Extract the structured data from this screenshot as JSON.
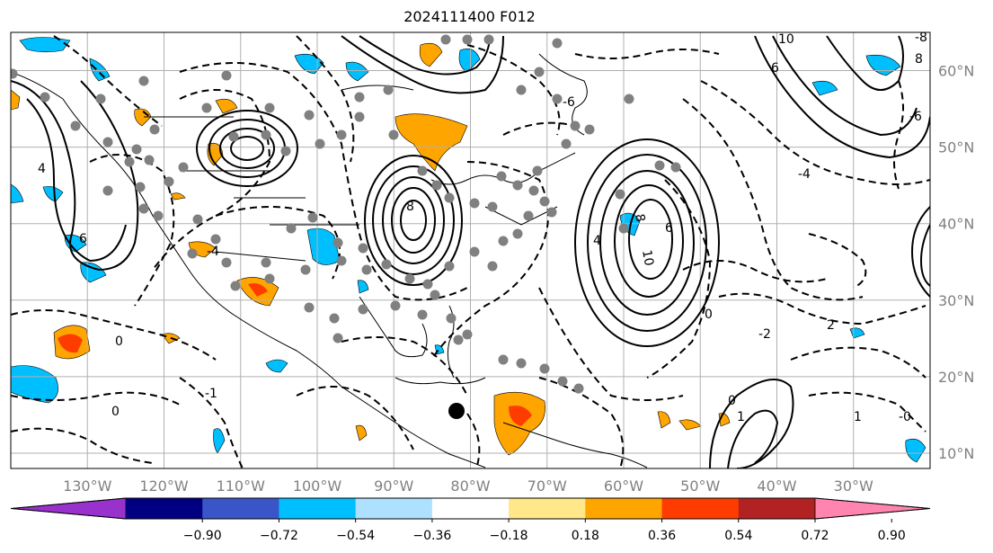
{
  "title": "2024111400 F012",
  "map": {
    "lon_range": [
      -140,
      -20
    ],
    "lat_range": [
      8,
      65
    ],
    "lat_labels": [
      "60°N",
      "50°N",
      "40°N",
      "30°N",
      "20°N",
      "10°N"
    ],
    "lat_values": [
      60,
      50,
      40,
      30,
      20,
      10
    ],
    "lon_labels": [
      "130°W",
      "120°W",
      "110°W",
      "100°W",
      "90°W",
      "80°W",
      "70°W",
      "60°W",
      "50°W",
      "40°W",
      "30°W"
    ],
    "lon_values": [
      -130,
      -120,
      -110,
      -100,
      -90,
      -80,
      -70,
      -60,
      -50,
      -40,
      -30
    ],
    "grid": true,
    "contour_labels": [
      "10",
      "8",
      "6",
      "4",
      "2",
      "0",
      "-1",
      "-2",
      "-4",
      "-6",
      "-8",
      "-10",
      "1",
      "-0"
    ],
    "marker_color": "#808080",
    "storm_marker_color": "#000000"
  },
  "colorbar": {
    "colors": [
      "#9932cc",
      "#000080",
      "#3a55c8",
      "#00bfff",
      "#aee0ff",
      "#ffffff",
      "#ffe78a",
      "#ffa500",
      "#ff3c00",
      "#b22222",
      "#ff85b0"
    ],
    "tick_labels": [
      "−0.90",
      "−0.72",
      "−0.54",
      "−0.36",
      "−0.18",
      "0.18",
      "0.36",
      "0.54",
      "0.72",
      "0.90"
    ]
  }
}
